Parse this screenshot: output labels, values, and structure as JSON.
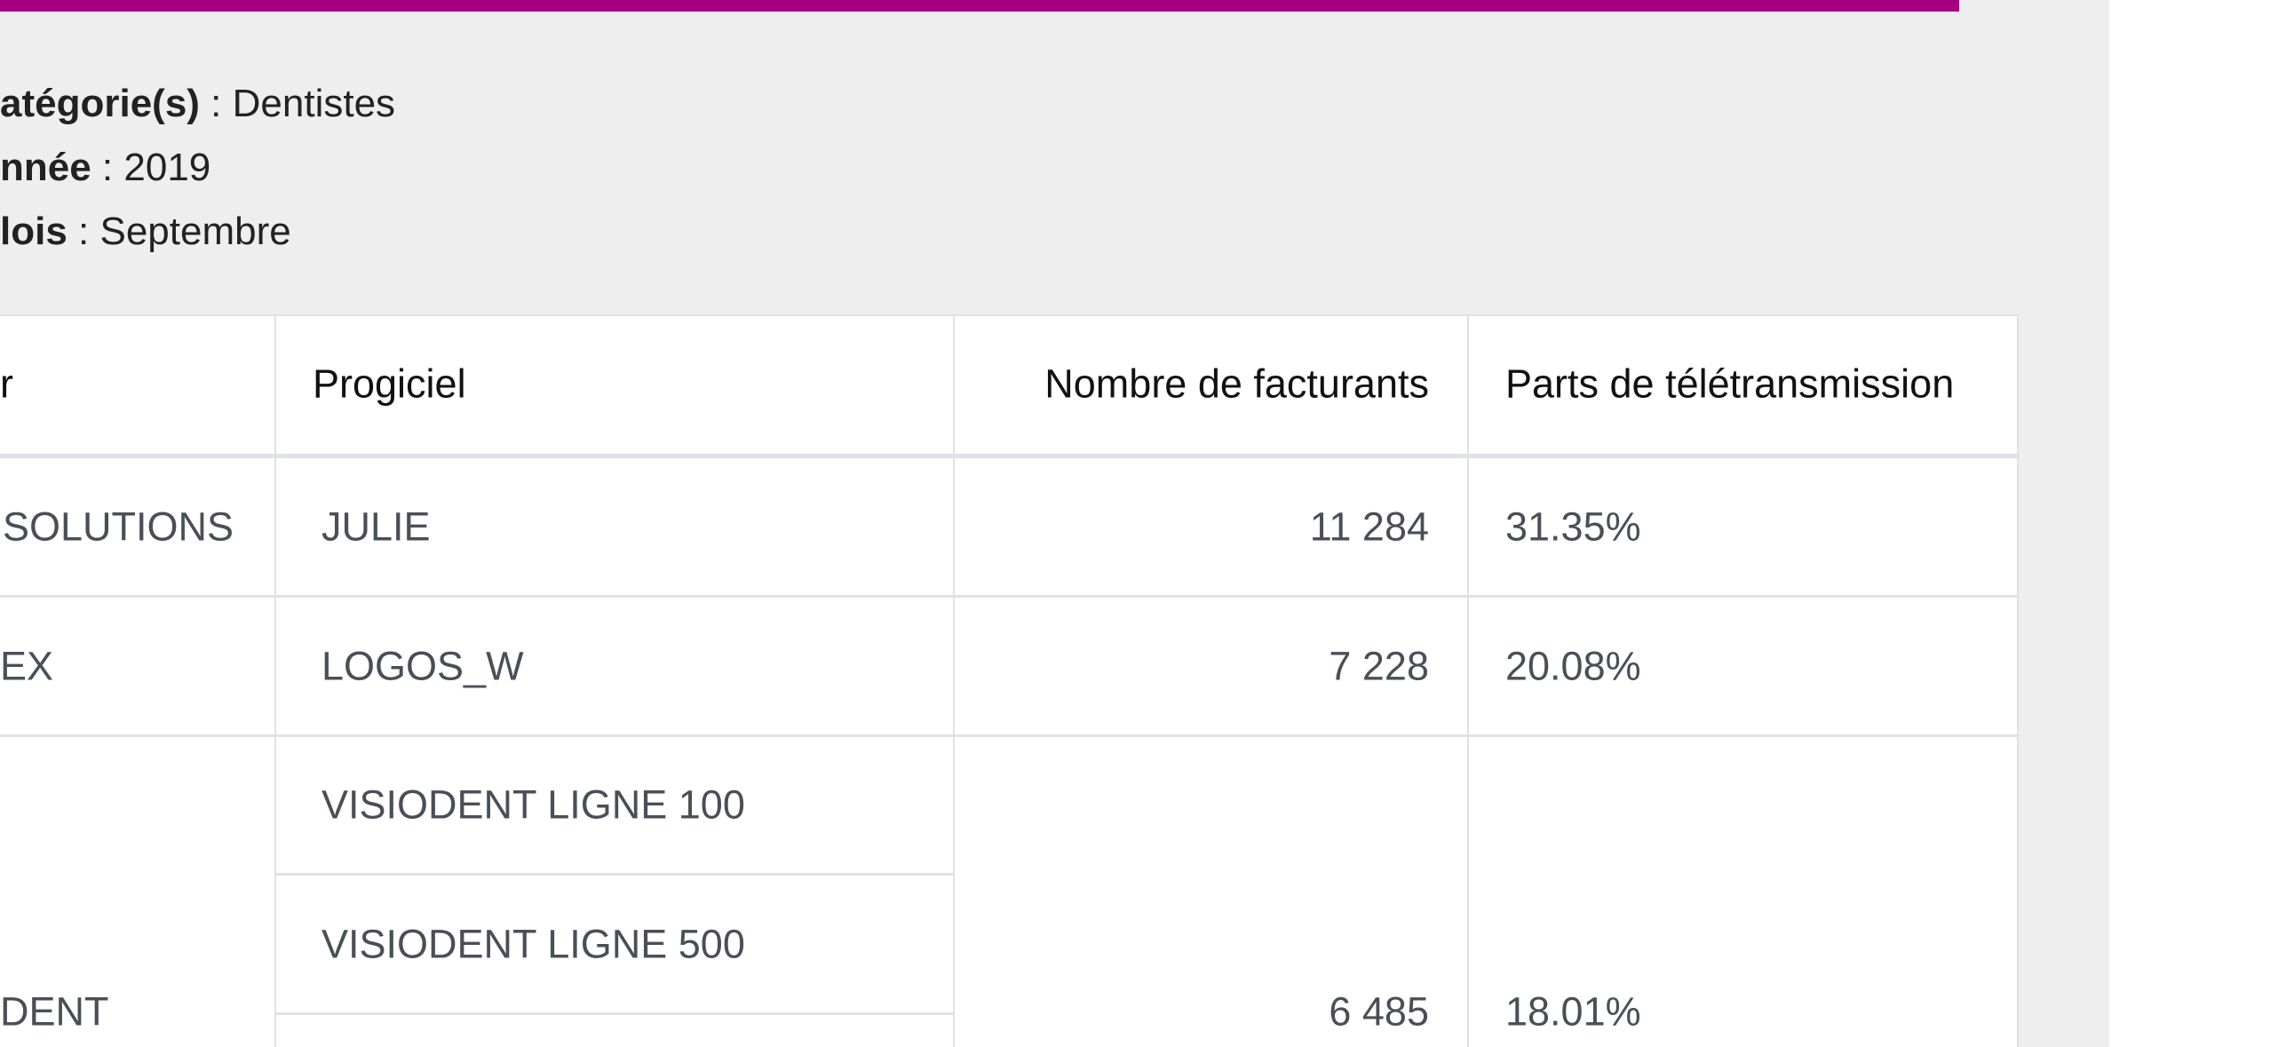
{
  "filters": [
    {
      "label": "atégorie(s)",
      "value": "Dentistes"
    },
    {
      "label": "nnée",
      "value": "2019"
    },
    {
      "label": "lois",
      "value": "Septembre"
    }
  ],
  "table": {
    "headers": [
      "r",
      "Progiciel",
      "Nombre de facturants",
      "Parts de télétransmission"
    ],
    "rows": [
      {
        "editeur": "SOLUTIONS",
        "progiciels": [
          "JULIE"
        ],
        "facturants": "11 284",
        "part": "31.35%"
      },
      {
        "editeur": "EX",
        "progiciels": [
          "LOGOS_W"
        ],
        "facturants": "7 228",
        "part": "20.08%"
      },
      {
        "editeur": "DENT",
        "progiciels": [
          "VISIODENT LIGNE 100",
          "VISIODENT LIGNE 500"
        ],
        "facturants": "6 485",
        "part": "18.01%"
      }
    ]
  }
}
